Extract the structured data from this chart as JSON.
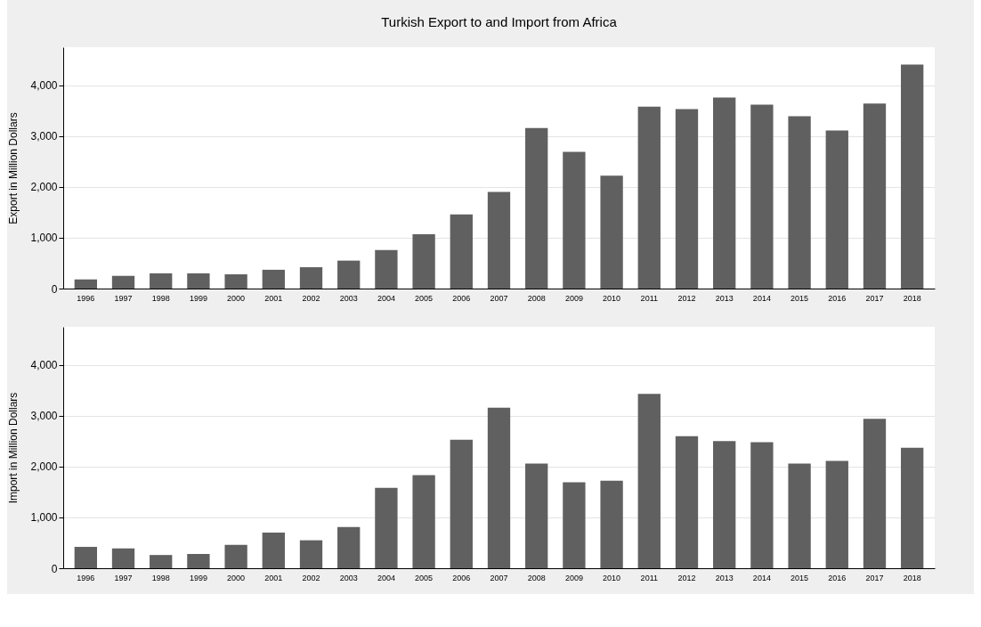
{
  "chart_data": [
    {
      "type": "bar",
      "title": "Turkish Export to and Import from Africa",
      "ylabel": "Export in Million Dollars",
      "categories": [
        "1996",
        "1997",
        "1998",
        "1999",
        "2000",
        "2001",
        "2002",
        "2003",
        "2004",
        "2005",
        "2006",
        "2007",
        "2008",
        "2009",
        "2010",
        "2011",
        "2012",
        "2013",
        "2014",
        "2015",
        "2016",
        "2017",
        "2018"
      ],
      "values": [
        180,
        250,
        300,
        300,
        280,
        370,
        420,
        550,
        760,
        1070,
        1460,
        1900,
        3160,
        2690,
        2220,
        3580,
        3530,
        3760,
        3620,
        3390,
        3110,
        3640,
        4410
      ],
      "color": "#606060",
      "ylim": [
        0,
        4750
      ],
      "yticks": [
        0,
        {
          "value": 1000,
          "label": "1,000"
        },
        {
          "value": 2000,
          "label": "2,000"
        },
        {
          "value": 3000,
          "label": "3,000"
        },
        {
          "value": 4000,
          "label": "4,000"
        }
      ],
      "grid": "y"
    },
    {
      "type": "bar",
      "ylabel": "Import in Million Dollars",
      "categories": [
        "1996",
        "1997",
        "1998",
        "1999",
        "2000",
        "2001",
        "2002",
        "2003",
        "2004",
        "2005",
        "2006",
        "2007",
        "2008",
        "2009",
        "2010",
        "2011",
        "2012",
        "2013",
        "2014",
        "2015",
        "2016",
        "2017",
        "2018"
      ],
      "values": [
        420,
        390,
        260,
        280,
        460,
        700,
        550,
        810,
        1580,
        1830,
        2530,
        3160,
        2060,
        1690,
        1720,
        3430,
        2600,
        2500,
        2480,
        2060,
        2110,
        2940,
        2370
      ],
      "color": "#606060",
      "ylim": [
        0,
        4750
      ],
      "yticks": [
        0,
        {
          "value": 1000,
          "label": "1,000"
        },
        {
          "value": 2000,
          "label": "2,000"
        },
        {
          "value": 3000,
          "label": "3,000"
        },
        {
          "value": 4000,
          "label": "4,000"
        }
      ],
      "grid": "y"
    }
  ]
}
